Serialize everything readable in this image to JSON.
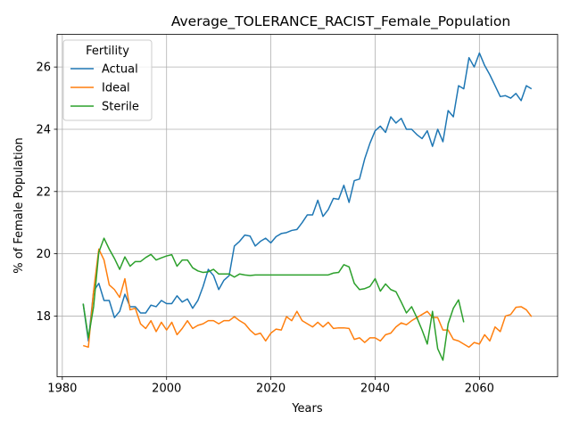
{
  "chart_data": {
    "type": "line",
    "title": "Average_TOLERANCE_RACIST_Female_Population",
    "xlabel": "Years",
    "ylabel": "% of Female Population",
    "xlim": [
      1979,
      2075
    ],
    "ylim": [
      16.05,
      27.05
    ],
    "xticks": [
      1980,
      2000,
      2020,
      2040,
      2060
    ],
    "yticks": [
      18,
      20,
      22,
      24,
      26
    ],
    "grid": true,
    "legend": {
      "title": "Fertility",
      "position": "top-left"
    },
    "series": [
      {
        "name": "Actual",
        "color": "#1f77b4",
        "x": [
          1984,
          1985,
          1986,
          1987,
          1988,
          1989,
          1990,
          1991,
          1992,
          1993,
          1994,
          1995,
          1996,
          1997,
          1998,
          1999,
          2000,
          2001,
          2002,
          2003,
          2004,
          2005,
          2006,
          2007,
          2008,
          2009,
          2010,
          2011,
          2012,
          2013,
          2014,
          2015,
          2016,
          2017,
          2018,
          2019,
          2020,
          2021,
          2022,
          2023,
          2024,
          2025,
          2026,
          2027,
          2028,
          2029,
          2030,
          2031,
          2032,
          2033,
          2034,
          2035,
          2036,
          2037,
          2038,
          2039,
          2040,
          2041,
          2042,
          2043,
          2044,
          2045,
          2046,
          2047,
          2048,
          2049,
          2050,
          2051,
          2052,
          2053,
          2054,
          2055,
          2056,
          2057,
          2058,
          2059,
          2060,
          2061,
          2062,
          2063,
          2064,
          2065,
          2066,
          2067,
          2068,
          2069,
          2070
        ],
        "y": [
          18.4,
          17.2,
          18.8,
          19.05,
          18.5,
          18.5,
          17.95,
          18.15,
          18.7,
          18.3,
          18.3,
          18.1,
          18.1,
          18.35,
          18.3,
          18.5,
          18.4,
          18.4,
          18.65,
          18.45,
          18.55,
          18.25,
          18.5,
          18.95,
          19.5,
          19.3,
          18.85,
          19.15,
          19.3,
          20.25,
          20.4,
          20.6,
          20.57,
          20.25,
          20.4,
          20.5,
          20.35,
          20.55,
          20.65,
          20.68,
          20.75,
          20.78,
          21.0,
          21.25,
          21.25,
          21.72,
          21.2,
          21.42,
          21.78,
          21.75,
          22.2,
          21.65,
          22.35,
          22.4,
          23.05,
          23.55,
          23.95,
          24.1,
          23.9,
          24.4,
          24.2,
          24.35,
          24.0,
          24.0,
          23.83,
          23.7,
          23.95,
          23.45,
          24.0,
          23.6,
          24.6,
          24.4,
          25.4,
          25.3,
          26.3,
          26.0,
          26.45,
          26.05,
          25.75,
          25.4,
          25.05,
          25.08,
          25.0,
          25.15,
          24.92,
          25.4,
          25.3
        ]
      },
      {
        "name": "Ideal",
        "color": "#ff7f0e",
        "x": [
          1984,
          1985,
          1986,
          1987,
          1988,
          1989,
          1990,
          1991,
          1992,
          1993,
          1994,
          1995,
          1996,
          1997,
          1998,
          1999,
          2000,
          2001,
          2002,
          2003,
          2004,
          2005,
          2006,
          2007,
          2008,
          2009,
          2010,
          2011,
          2012,
          2013,
          2014,
          2015,
          2016,
          2017,
          2018,
          2019,
          2020,
          2021,
          2022,
          2023,
          2024,
          2025,
          2026,
          2027,
          2028,
          2029,
          2030,
          2031,
          2032,
          2033,
          2034,
          2035,
          2036,
          2037,
          2038,
          2039,
          2040,
          2041,
          2042,
          2043,
          2044,
          2045,
          2046,
          2047,
          2048,
          2049,
          2050,
          2051,
          2052,
          2053,
          2054,
          2055,
          2056,
          2057,
          2058,
          2059,
          2060,
          2061,
          2062,
          2063,
          2064,
          2065,
          2066,
          2067,
          2068,
          2069,
          2070
        ],
        "y": [
          17.05,
          17.0,
          18.8,
          20.15,
          19.8,
          19.0,
          18.85,
          18.6,
          19.2,
          18.2,
          18.25,
          17.75,
          17.6,
          17.85,
          17.5,
          17.8,
          17.55,
          17.8,
          17.4,
          17.6,
          17.85,
          17.6,
          17.7,
          17.75,
          17.85,
          17.85,
          17.75,
          17.85,
          17.85,
          17.98,
          17.85,
          17.75,
          17.55,
          17.4,
          17.45,
          17.2,
          17.45,
          17.58,
          17.55,
          17.98,
          17.85,
          18.15,
          17.85,
          17.75,
          17.65,
          17.8,
          17.65,
          17.8,
          17.6,
          17.62,
          17.62,
          17.6,
          17.25,
          17.3,
          17.15,
          17.3,
          17.3,
          17.2,
          17.4,
          17.45,
          17.65,
          17.78,
          17.72,
          17.85,
          17.95,
          18.05,
          18.15,
          17.95,
          17.95,
          17.55,
          17.55,
          17.25,
          17.2,
          17.1,
          17.0,
          17.15,
          17.1,
          17.4,
          17.2,
          17.65,
          17.5,
          18.0,
          18.05,
          18.28,
          18.3,
          18.2,
          17.98
        ]
      },
      {
        "name": "Sterile",
        "color": "#2ca02c",
        "x": [
          1984,
          1985,
          1986,
          1987,
          1988,
          1989,
          1990,
          1991,
          1992,
          1993,
          1994,
          1995,
          1996,
          1997,
          1998,
          1999,
          2000,
          2001,
          2002,
          2003,
          2004,
          2005,
          2006,
          2007,
          2008,
          2009,
          2010,
          2011,
          2012,
          2013,
          2014,
          2015,
          2016,
          2017,
          2018,
          2019,
          2020,
          2021,
          2022,
          2023,
          2024,
          2025,
          2026,
          2027,
          2028,
          2029,
          2030,
          2031,
          2032,
          2033,
          2034,
          2035,
          2036,
          2037,
          2038,
          2039,
          2040,
          2041,
          2042,
          2043,
          2044,
          2045,
          2046,
          2047,
          2048,
          2049,
          2050,
          2051,
          2052,
          2053,
          2054,
          2055,
          2056,
          2057
        ],
        "y": [
          18.4,
          17.3,
          18.3,
          20.05,
          20.5,
          20.15,
          19.85,
          19.5,
          19.9,
          19.6,
          19.75,
          19.75,
          19.88,
          19.98,
          19.8,
          19.87,
          19.93,
          19.97,
          19.6,
          19.8,
          19.8,
          19.55,
          19.45,
          19.4,
          19.42,
          19.5,
          19.35,
          19.35,
          19.35,
          19.25,
          19.35,
          19.32,
          19.3,
          19.32,
          19.32,
          19.32,
          19.32,
          19.32,
          19.32,
          19.32,
          19.32,
          19.32,
          19.32,
          19.32,
          19.32,
          19.32,
          19.32,
          19.32,
          19.38,
          19.4,
          19.65,
          19.58,
          19.05,
          18.85,
          18.88,
          18.95,
          19.2,
          18.8,
          19.03,
          18.85,
          18.78,
          18.45,
          18.1,
          18.3,
          17.95,
          17.55,
          17.1,
          18.15,
          16.95,
          16.58,
          17.75,
          18.25,
          18.52,
          17.8
        ]
      }
    ]
  }
}
